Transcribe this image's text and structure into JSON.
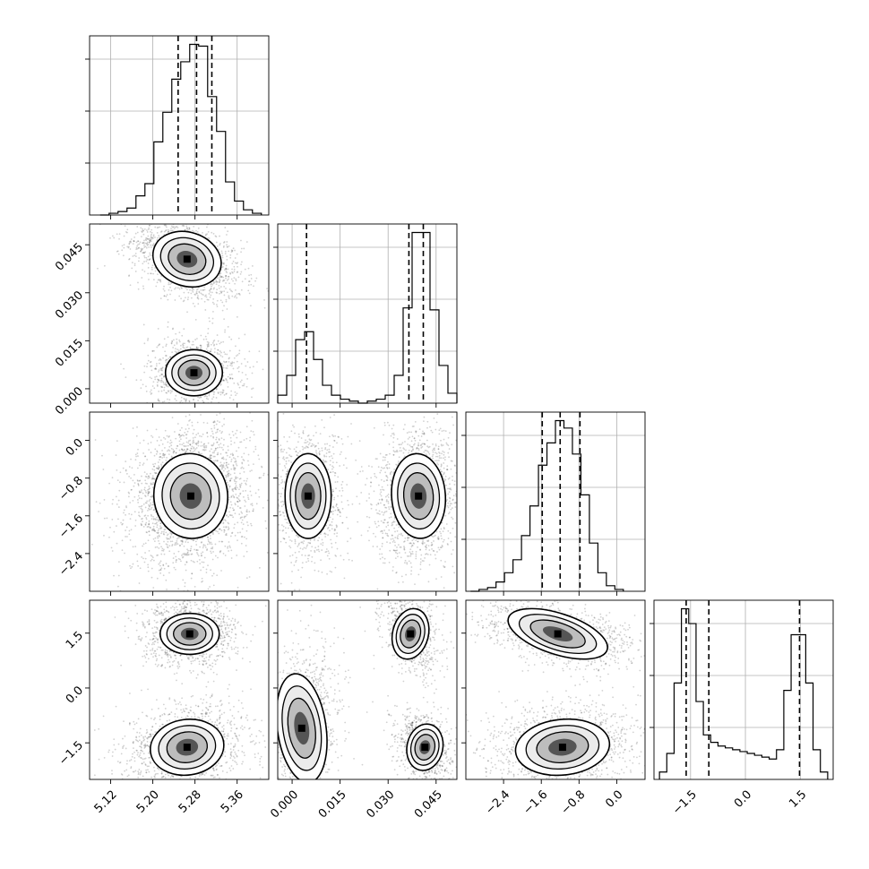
{
  "chart_data": {
    "type": "corner",
    "grid": true,
    "parameters": [
      {
        "key": "p1",
        "range": [
          5.08,
          5.42
        ],
        "ticks": [
          5.12,
          5.2,
          5.28,
          5.36
        ],
        "tick_labels": [
          "5.12",
          "5.20",
          "5.28",
          "5.36"
        ],
        "quantiles": [
          5.248,
          5.283,
          5.312
        ],
        "marginal": {
          "bin_edges": [
            5.1,
            5.117,
            5.134,
            5.151,
            5.168,
            5.185,
            5.202,
            5.219,
            5.236,
            5.253,
            5.27,
            5.287,
            5.304,
            5.321,
            5.338,
            5.355,
            5.372,
            5.389,
            5.406
          ],
          "counts": [
            0,
            1,
            2,
            4,
            11,
            18,
            42,
            59,
            78,
            88,
            98,
            97,
            68,
            48,
            19,
            8,
            3,
            1
          ]
        },
        "modes": [
          [
            5.282,
            1.0
          ]
        ]
      },
      {
        "key": "p2",
        "range": [
          -0.0045,
          0.0515
        ],
        "ticks": [
          0.0,
          0.015,
          0.03,
          0.045
        ],
        "tick_labels": [
          "0.000",
          "0.015",
          "0.030",
          "0.045"
        ],
        "quantiles": [
          0.0045,
          0.0365,
          0.041
        ],
        "marginal": {
          "bin_edges": [
            -0.0045,
            -0.0017,
            0.0011,
            0.0039,
            0.0067,
            0.0095,
            0.0123,
            0.0151,
            0.0179,
            0.0207,
            0.0235,
            0.0263,
            0.0291,
            0.0319,
            0.0347,
            0.0375,
            0.0403,
            0.0431,
            0.0459,
            0.0487,
            0.0515
          ],
          "counts": [
            4,
            14,
            32,
            36,
            22,
            9,
            4,
            2,
            1,
            0,
            1,
            2,
            4,
            14,
            48,
            86,
            86,
            47,
            19,
            5
          ]
        },
        "modes": [
          [
            0.005,
            0.4
          ],
          [
            0.039,
            0.6
          ]
        ]
      },
      {
        "key": "p3",
        "range": [
          -3.2,
          0.6
        ],
        "ticks": [
          -2.4,
          -1.6,
          -0.8,
          0.0
        ],
        "tick_labels": [
          "−2.4",
          "−1.6",
          "−0.8",
          "0.0"
        ],
        "quantiles": [
          -1.58,
          -1.2,
          -0.78
        ],
        "marginal": {
          "bin_edges": [
            -3.1,
            -2.92,
            -2.74,
            -2.56,
            -2.38,
            -2.2,
            -2.02,
            -1.84,
            -1.66,
            -1.48,
            -1.3,
            -1.12,
            -0.94,
            -0.76,
            -0.58,
            -0.4,
            -0.22,
            -0.04,
            0.14
          ],
          "counts": [
            0,
            1,
            2,
            5,
            10,
            17,
            30,
            46,
            68,
            80,
            92,
            88,
            74,
            52,
            26,
            10,
            3,
            1
          ]
        },
        "modes": [
          [
            -1.18,
            1.0
          ]
        ]
      },
      {
        "key": "p4",
        "range": [
          -2.5,
          2.4
        ],
        "ticks": [
          -1.5,
          0.0,
          1.5
        ],
        "tick_labels": [
          "−1.5",
          "0.0",
          "1.5"
        ],
        "quantiles": [
          -1.62,
          -1.0,
          1.48
        ],
        "marginal": {
          "bin_edges": [
            -2.35,
            -2.15,
            -1.95,
            -1.75,
            -1.55,
            -1.35,
            -1.15,
            -0.95,
            -0.75,
            -0.55,
            -0.35,
            -0.15,
            0.05,
            0.25,
            0.45,
            0.65,
            0.85,
            1.05,
            1.25,
            1.45,
            1.65,
            1.85,
            2.05,
            2.25
          ],
          "counts": [
            4,
            14,
            52,
            92,
            84,
            42,
            24,
            20,
            18,
            17,
            16,
            15,
            14,
            13,
            12,
            11,
            16,
            48,
            78,
            78,
            52,
            16,
            4
          ]
        },
        "modes": [
          [
            -1.62,
            0.55
          ],
          [
            1.48,
            0.45
          ]
        ]
      }
    ],
    "joint_clusters": [
      {
        "params": [
          0,
          1
        ],
        "clusters": [
          {
            "center": [
              5.265,
              0.0405
            ],
            "spread": [
              0.033,
              0.0042
            ],
            "corr": -0.45,
            "weight": 0.6
          },
          {
            "center": [
              5.278,
              0.005
            ],
            "spread": [
              0.027,
              0.0036
            ],
            "corr": 0.0,
            "weight": 0.4
          }
        ]
      },
      {
        "params": [
          0,
          2
        ],
        "clusters": [
          {
            "center": [
              5.272,
              -1.18
            ],
            "spread": [
              0.035,
              0.45
            ],
            "corr": 0.15,
            "weight": 1.0
          }
        ]
      },
      {
        "params": [
          1,
          2
        ],
        "clusters": [
          {
            "center": [
              0.005,
              -1.18
            ],
            "spread": [
              0.0036,
              0.45
            ],
            "corr": 0.0,
            "weight": 0.4
          },
          {
            "center": [
              0.0395,
              -1.18
            ],
            "spread": [
              0.0042,
              0.45
            ],
            "corr": 0.1,
            "weight": 0.6
          }
        ]
      },
      {
        "params": [
          0,
          3
        ],
        "clusters": [
          {
            "center": [
              5.27,
              1.48
            ],
            "spread": [
              0.028,
              0.28
            ],
            "corr": 0.0,
            "weight": 0.45
          },
          {
            "center": [
              5.265,
              -1.62
            ],
            "spread": [
              0.035,
              0.38
            ],
            "corr": 0.2,
            "weight": 0.55
          }
        ]
      },
      {
        "params": [
          1,
          3
        ],
        "clusters": [
          {
            "center": [
              0.037,
              1.48
            ],
            "spread": [
              0.0028,
              0.35
            ],
            "corr": -0.35,
            "weight": 0.3
          },
          {
            "center": [
              0.0415,
              -1.62
            ],
            "spread": [
              0.0028,
              0.32
            ],
            "corr": -0.3,
            "weight": 0.3
          },
          {
            "center": [
              0.003,
              -1.1
            ],
            "spread": [
              0.0038,
              0.75
            ],
            "corr": 0.2,
            "weight": 0.4
          }
        ]
      },
      {
        "params": [
          2,
          3
        ],
        "clusters": [
          {
            "center": [
              -1.25,
              1.48
            ],
            "spread": [
              0.55,
              0.28
            ],
            "corr": -0.45,
            "weight": 0.45
          },
          {
            "center": [
              -1.15,
              -1.62
            ],
            "spread": [
              0.5,
              0.38
            ],
            "corr": 0.15,
            "weight": 0.55
          }
        ]
      }
    ]
  }
}
